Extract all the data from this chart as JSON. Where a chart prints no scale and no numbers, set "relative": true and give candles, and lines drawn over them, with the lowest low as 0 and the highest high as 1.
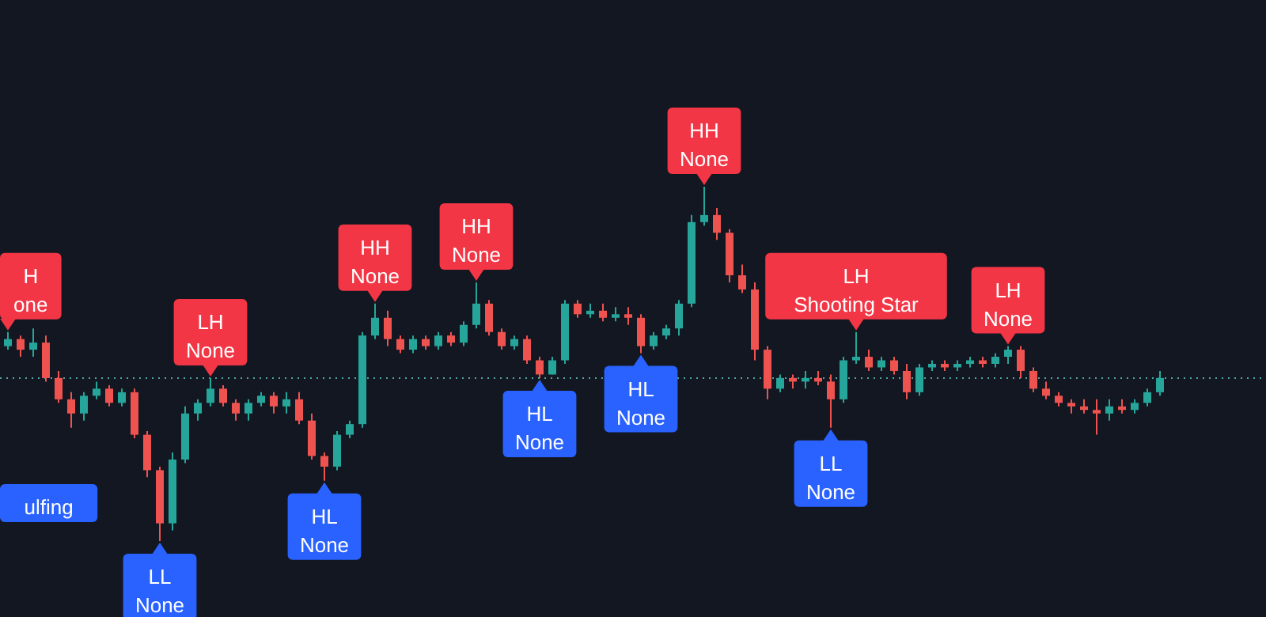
{
  "chart_data": {
    "type": "candlestick",
    "relative": true,
    "categories": [
      null,
      null,
      null,
      null,
      null,
      null,
      null,
      null,
      null,
      null,
      null,
      null,
      null,
      null,
      null,
      null,
      null,
      null,
      null,
      null,
      null,
      null,
      null,
      null,
      null,
      null,
      null,
      null,
      null,
      null,
      null,
      null,
      null,
      null,
      null,
      null,
      null,
      null,
      null,
      null,
      null,
      null,
      null,
      null,
      null,
      null,
      null,
      null,
      null,
      null,
      null,
      null,
      null,
      null,
      null,
      null,
      null,
      null,
      null,
      null,
      null,
      null,
      null,
      null,
      null,
      null,
      null,
      null,
      null,
      null,
      null,
      null,
      null,
      null,
      null,
      null,
      null,
      null,
      null,
      null,
      null,
      null,
      null,
      null,
      null,
      null,
      null,
      null,
      null,
      null,
      null,
      null
    ],
    "ohlc": [
      [
        0.55,
        0.59,
        0.54,
        0.57
      ],
      [
        0.57,
        0.58,
        0.52,
        0.54
      ],
      [
        0.54,
        0.6,
        0.52,
        0.56
      ],
      [
        0.56,
        0.58,
        0.45,
        0.46
      ],
      [
        0.46,
        0.48,
        0.39,
        0.4
      ],
      [
        0.4,
        0.42,
        0.32,
        0.36
      ],
      [
        0.36,
        0.42,
        0.34,
        0.41
      ],
      [
        0.41,
        0.45,
        0.4,
        0.43
      ],
      [
        0.43,
        0.44,
        0.38,
        0.39
      ],
      [
        0.39,
        0.43,
        0.38,
        0.42
      ],
      [
        0.42,
        0.43,
        0.29,
        0.3
      ],
      [
        0.3,
        0.31,
        0.18,
        0.2
      ],
      [
        0.2,
        0.21,
        0,
        0.05
      ],
      [
        0.05,
        0.25,
        0.03,
        0.23
      ],
      [
        0.23,
        0.38,
        0.22,
        0.36
      ],
      [
        0.36,
        0.4,
        0.34,
        0.39
      ],
      [
        0.39,
        0.46,
        0.38,
        0.43
      ],
      [
        0.43,
        0.44,
        0.38,
        0.39
      ],
      [
        0.39,
        0.4,
        0.34,
        0.36
      ],
      [
        0.36,
        0.4,
        0.34,
        0.39
      ],
      [
        0.39,
        0.42,
        0.38,
        0.41
      ],
      [
        0.41,
        0.42,
        0.36,
        0.38
      ],
      [
        0.38,
        0.42,
        0.36,
        0.4
      ],
      [
        0.4,
        0.42,
        0.33,
        0.34
      ],
      [
        0.34,
        0.36,
        0.23,
        0.24
      ],
      [
        0.24,
        0.25,
        0.17,
        0.21
      ],
      [
        0.21,
        0.31,
        0.2,
        0.3
      ],
      [
        0.3,
        0.34,
        0.29,
        0.33
      ],
      [
        0.33,
        0.59,
        0.32,
        0.58
      ],
      [
        0.58,
        0.67,
        0.57,
        0.63
      ],
      [
        0.63,
        0.65,
        0.55,
        0.57
      ],
      [
        0.57,
        0.58,
        0.53,
        0.54
      ],
      [
        0.54,
        0.58,
        0.53,
        0.57
      ],
      [
        0.57,
        0.58,
        0.54,
        0.55
      ],
      [
        0.55,
        0.59,
        0.54,
        0.58
      ],
      [
        0.58,
        0.59,
        0.55,
        0.56
      ],
      [
        0.56,
        0.62,
        0.55,
        0.61
      ],
      [
        0.61,
        0.73,
        0.6,
        0.67
      ],
      [
        0.67,
        0.68,
        0.58,
        0.59
      ],
      [
        0.59,
        0.6,
        0.54,
        0.55
      ],
      [
        0.55,
        0.58,
        0.54,
        0.57
      ],
      [
        0.57,
        0.58,
        0.5,
        0.51
      ],
      [
        0.51,
        0.52,
        0.46,
        0.47
      ],
      [
        0.47,
        0.52,
        0.47,
        0.51
      ],
      [
        0.51,
        0.68,
        0.5,
        0.67
      ],
      [
        0.67,
        0.68,
        0.63,
        0.64
      ],
      [
        0.64,
        0.67,
        0.63,
        0.65
      ],
      [
        0.65,
        0.67,
        0.62,
        0.63
      ],
      [
        0.63,
        0.66,
        0.62,
        0.64
      ],
      [
        0.64,
        0.66,
        0.61,
        0.63
      ],
      [
        0.63,
        0.64,
        0.53,
        0.55
      ],
      [
        0.55,
        0.59,
        0.54,
        0.58
      ],
      [
        0.58,
        0.61,
        0.57,
        0.6
      ],
      [
        0.6,
        0.68,
        0.58,
        0.67
      ],
      [
        0.67,
        0.92,
        0.66,
        0.9
      ],
      [
        0.9,
        1,
        0.89,
        0.92
      ],
      [
        0.92,
        0.94,
        0.85,
        0.87
      ],
      [
        0.87,
        0.88,
        0.73,
        0.75
      ],
      [
        0.75,
        0.78,
        0.7,
        0.71
      ],
      [
        0.71,
        0.73,
        0.51,
        0.54
      ],
      [
        0.54,
        0.55,
        0.4,
        0.43
      ],
      [
        0.43,
        0.47,
        0.42,
        0.46
      ],
      [
        0.46,
        0.47,
        0.43,
        0.45
      ],
      [
        0.45,
        0.48,
        0.43,
        0.46
      ],
      [
        0.46,
        0.48,
        0.44,
        0.45
      ],
      [
        0.45,
        0.47,
        0.32,
        0.4
      ],
      [
        0.4,
        0.52,
        0.39,
        0.51
      ],
      [
        0.51,
        0.59,
        0.5,
        0.52
      ],
      [
        0.52,
        0.54,
        0.48,
        0.49
      ],
      [
        0.49,
        0.52,
        0.48,
        0.51
      ],
      [
        0.51,
        0.52,
        0.47,
        0.48
      ],
      [
        0.48,
        0.5,
        0.4,
        0.42
      ],
      [
        0.42,
        0.5,
        0.41,
        0.49
      ],
      [
        0.49,
        0.51,
        0.48,
        0.5
      ],
      [
        0.5,
        0.51,
        0.48,
        0.49
      ],
      [
        0.49,
        0.51,
        0.48,
        0.5
      ],
      [
        0.5,
        0.52,
        0.49,
        0.51
      ],
      [
        0.51,
        0.52,
        0.49,
        0.5
      ],
      [
        0.5,
        0.53,
        0.49,
        0.52
      ],
      [
        0.52,
        0.55,
        0.5,
        0.54
      ],
      [
        0.54,
        0.55,
        0.46,
        0.48
      ],
      [
        0.48,
        0.49,
        0.42,
        0.43
      ],
      [
        0.43,
        0.45,
        0.4,
        0.41
      ],
      [
        0.41,
        0.42,
        0.38,
        0.39
      ],
      [
        0.39,
        0.4,
        0.36,
        0.38
      ],
      [
        0.38,
        0.4,
        0.36,
        0.37
      ],
      [
        0.37,
        0.4,
        0.3,
        0.36
      ],
      [
        0.36,
        0.4,
        0.34,
        0.38
      ],
      [
        0.38,
        0.4,
        0.36,
        0.37
      ],
      [
        0.37,
        0.4,
        0.36,
        0.39
      ],
      [
        0.39,
        0.43,
        0.38,
        0.42
      ],
      [
        0.42,
        0.48,
        0.41,
        0.46
      ]
    ],
    "ref_lines": [
      {
        "axis": "y",
        "value": 0.46,
        "color": "#4fa3a0",
        "line_style": "dotted"
      }
    ],
    "annotations": [
      {
        "text": "H\none",
        "y": 0.59
      },
      {
        "text": "ulfing"
      },
      {
        "text": "LL\nNone",
        "y": 0
      },
      {
        "text": "LH\nNone",
        "y": 0.46
      },
      {
        "text": "HL\nNone",
        "y": 0.17
      },
      {
        "text": "HH\nNone",
        "y": 0.67
      },
      {
        "text": "HH\nNone",
        "y": 0.73
      },
      {
        "text": "HL\nNone",
        "y": 0.46
      },
      {
        "text": "HL\nNone",
        "y": 0.53
      },
      {
        "text": "HH\nNone",
        "y": 1
      },
      {
        "text": "LL\nNone",
        "y": 0.32
      },
      {
        "text": "LH\nShooting Star",
        "y": 0.59
      },
      {
        "text": "LH\nNone",
        "y": 0.55
      }
    ]
  }
}
